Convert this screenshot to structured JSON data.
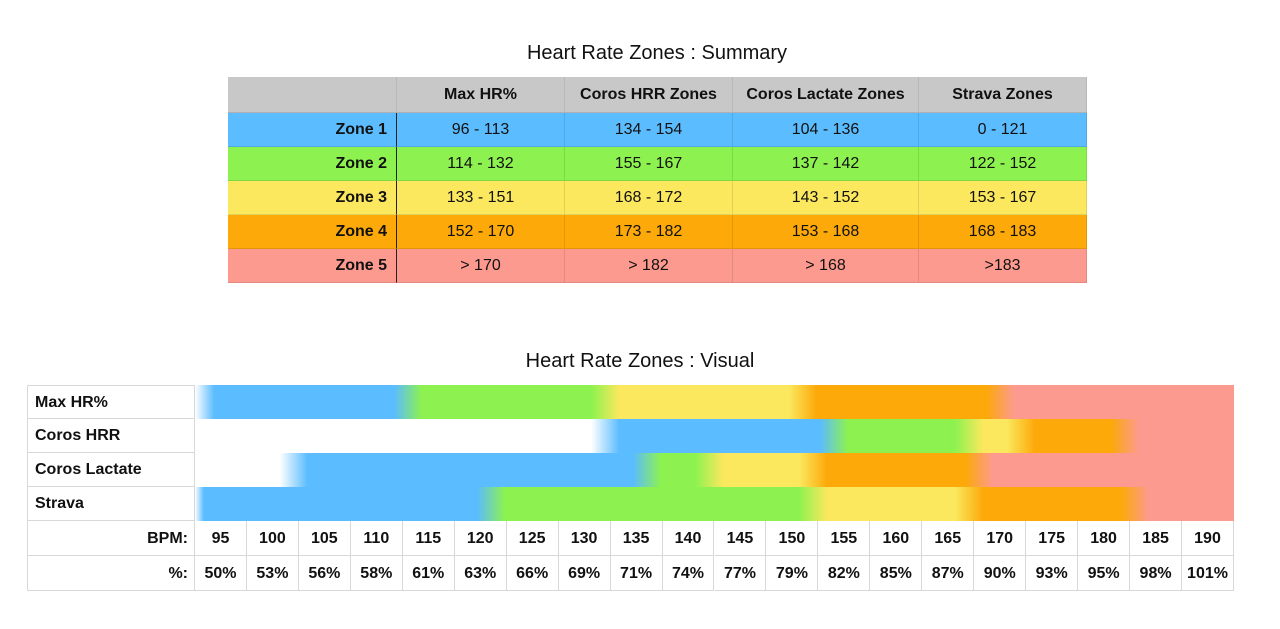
{
  "summary": {
    "title": "Heart Rate Zones : Summary",
    "headers": [
      "",
      "Max HR%",
      "Coros HRR Zones",
      "Coros Lactate Zones",
      "Strava Zones"
    ],
    "rows": [
      {
        "label": "Zone 1",
        "color": "#5bbcff",
        "cells": [
          "96 - 113",
          "134 - 154",
          "104 - 136",
          "0 - 121"
        ]
      },
      {
        "label": "Zone 2",
        "color": "#8df24f",
        "cells": [
          "114 - 132",
          "155 - 167",
          "137 - 142",
          "122 - 152"
        ]
      },
      {
        "label": "Zone 3",
        "color": "#fbe85e",
        "cells": [
          "133 - 151",
          "168 - 172",
          "143 - 152",
          "153 - 167"
        ]
      },
      {
        "label": "Zone 4",
        "color": "#fca909",
        "cells": [
          "152 - 170",
          "173 - 182",
          "153 - 168",
          "168 - 183"
        ]
      },
      {
        "label": "Zone 5",
        "color": "#fd9a8f",
        "cells": [
          "> 170",
          "> 182",
          "> 168",
          ">183"
        ]
      }
    ]
  },
  "chart_data": {
    "type": "table",
    "title": "Heart Rate Zones : Visual",
    "zone_colors": [
      "#5bbcff",
      "#8df24f",
      "#fbe85e",
      "#fca909",
      "#fd9a8f"
    ],
    "series": [
      {
        "name": "Max HR%",
        "start": 96,
        "boundaries": [
          113,
          132,
          151,
          170
        ]
      },
      {
        "name": "Coros HRR",
        "start": 134,
        "boundaries": [
          154,
          167,
          172,
          182
        ]
      },
      {
        "name": "Coros Lactate",
        "start": 104,
        "boundaries": [
          136,
          142,
          152,
          168
        ]
      },
      {
        "name": "Strava",
        "start": 95,
        "boundaries": [
          121,
          152,
          167,
          183
        ]
      }
    ],
    "bpm_label": "BPM:",
    "pct_label": "%:",
    "bpm": [
      "95",
      "100",
      "105",
      "110",
      "115",
      "120",
      "125",
      "130",
      "135",
      "140",
      "145",
      "150",
      "155",
      "160",
      "165",
      "170",
      "175",
      "180",
      "185",
      "190"
    ],
    "pct": [
      "50%",
      "53%",
      "56%",
      "58%",
      "61%",
      "63%",
      "66%",
      "69%",
      "71%",
      "74%",
      "77%",
      "79%",
      "82%",
      "85%",
      "87%",
      "90%",
      "93%",
      "95%",
      "98%",
      "101%"
    ]
  }
}
